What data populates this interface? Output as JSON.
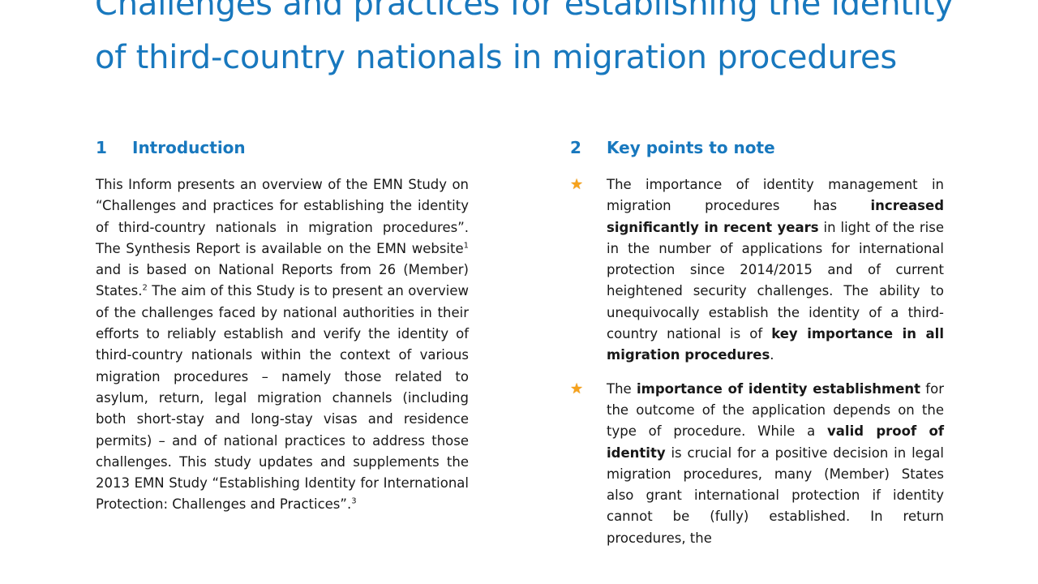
{
  "colors": {
    "accent_blue": "#1878BE",
    "body_text": "#181818",
    "star_orange": "#F6A21C",
    "page_background": "#FFFFFF"
  },
  "title": {
    "text": "Challenges and practices for establishing the identity of third-country nationals in migration procedures"
  },
  "left_section": {
    "number": "1",
    "heading": "Introduction",
    "paragraph": [
      {
        "t": "This Inform presents an overview of the EMN Study on “Challenges and practices for establishing the identity of third-country nationals in migration procedures”. The Synthesis Report is available on the EMN website"
      },
      {
        "t": "1",
        "sup": true
      },
      {
        "t": " and is based on National Reports from 26 (Member) States."
      },
      {
        "t": "2",
        "sup": true
      },
      {
        "t": " The aim of this Study is to present an overview of the challenges faced by national authorities in their efforts to reliably establish and verify the identity of third-country nationals within the context of various migration procedures – namely those related to asylum, return, legal migration channels (including both short-stay and long-stay visas and residence permits) – and of national practices to address those challenges. This study updates and supplements the 2013 EMN Study “Establishing Identity for International Protection: Challenges and Practices”."
      },
      {
        "t": "3",
        "sup": true
      }
    ]
  },
  "right_section": {
    "number": "2",
    "heading": "Key points to note",
    "bullet_glyph": "★",
    "bullet_icon_name": "star-icon",
    "bullets": [
      [
        {
          "t": "The importance of identity management in migration procedures has "
        },
        {
          "t": "increased significantly in recent years",
          "b": true
        },
        {
          "t": " in light of the rise in the number of applications for international protection since 2014/2015 and of current heightened security challenges. The ability to unequivocally establish the identity of a third-country national is of "
        },
        {
          "t": "key importance in all migration procedures",
          "b": true
        },
        {
          "t": "."
        }
      ],
      [
        {
          "t": "The "
        },
        {
          "t": "importance of identity establishment",
          "b": true
        },
        {
          "t": " for the outcome of the application depends on the type of procedure. While a "
        },
        {
          "t": "valid proof of identity",
          "b": true
        },
        {
          "t": " is crucial for a positive decision in legal migration procedures, many (Member) States also grant international protection if identity cannot be (fully) established. In return procedures, the"
        }
      ]
    ]
  }
}
